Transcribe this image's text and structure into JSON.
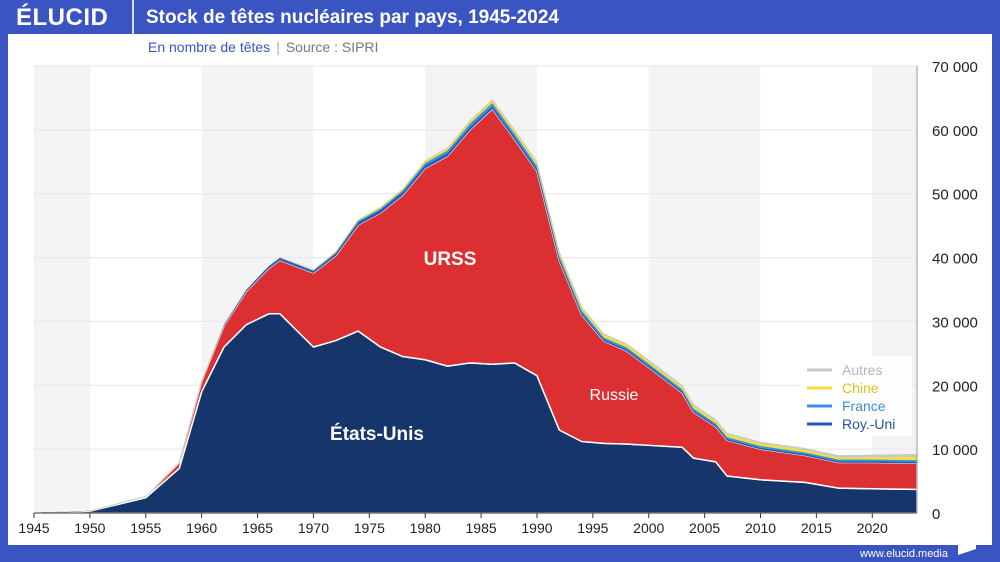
{
  "header": {
    "logo": "ÉLUCID",
    "title": "Stock de têtes nucléaires par pays, 1945-2024"
  },
  "subheader": {
    "unit": "En nombre de têtes",
    "separator": "|",
    "source": "Source : SIPRI"
  },
  "footer": {
    "url": "www.elucid.media"
  },
  "chart_data": {
    "type": "area",
    "stacked": true,
    "title": "Stock de têtes nucléaires par pays, 1945-2024",
    "xlim": [
      1945,
      2024
    ],
    "ylim": [
      0,
      70000
    ],
    "x_ticks": [
      "1945",
      "1950",
      "1955",
      "1960",
      "1965",
      "1970",
      "1975",
      "1980",
      "1985",
      "1990",
      "1995",
      "2000",
      "2005",
      "2010",
      "2015",
      "2020"
    ],
    "y_ticks": [
      "0",
      "10 000",
      "20 000",
      "30 000",
      "40 000",
      "50 000",
      "60 000",
      "70 000"
    ],
    "y_axis_position": "right",
    "grid": true,
    "legend_position": "right",
    "x": [
      1945,
      1950,
      1955,
      1958,
      1960,
      1962,
      1964,
      1966,
      1967,
      1970,
      1972,
      1974,
      1976,
      1978,
      1980,
      1982,
      1984,
      1986,
      1988,
      1990,
      1992,
      1994,
      1996,
      1998,
      2000,
      2003,
      2004,
      2006,
      2007,
      2010,
      2014,
      2017,
      2020,
      2024
    ],
    "series": [
      {
        "name": "États-Unis",
        "color": "#16366b",
        "values": [
          2,
          300,
          2400,
          7000,
          19000,
          26000,
          29500,
          31200,
          31200,
          26000,
          27000,
          28500,
          26000,
          24500,
          24000,
          23000,
          23500,
          23300,
          23500,
          21500,
          13000,
          11200,
          10900,
          10800,
          10600,
          10300,
          8600,
          8000,
          5800,
          5200,
          4800,
          3900,
          3800,
          3700
        ]
      },
      {
        "name": "URSS / Russie",
        "color": "#dc2f32",
        "values": [
          0,
          5,
          200,
          870,
          1600,
          3300,
          5200,
          7100,
          8400,
          11600,
          13300,
          16600,
          21000,
          25300,
          30000,
          32900,
          36500,
          40000,
          35000,
          32000,
          26500,
          19800,
          16000,
          14600,
          12200,
          8500,
          7200,
          5500,
          5600,
          4800,
          4200,
          4000,
          4100,
          4100
        ]
      },
      {
        "name": "Roy.-Uni",
        "color": "#2457b8",
        "values": [
          0,
          0,
          10,
          50,
          40,
          200,
          300,
          350,
          350,
          300,
          350,
          450,
          450,
          450,
          450,
          450,
          450,
          400,
          400,
          400,
          350,
          300,
          250,
          250,
          250,
          250,
          250,
          250,
          225,
          225,
          225,
          215,
          215,
          225
        ]
      },
      {
        "name": "France",
        "color": "#3a93e0",
        "values": [
          0,
          0,
          0,
          0,
          0,
          0,
          4,
          32,
          50,
          100,
          150,
          200,
          250,
          300,
          400,
          450,
          550,
          550,
          540,
          500,
          450,
          450,
          350,
          350,
          350,
          350,
          350,
          300,
          300,
          300,
          290,
          290,
          290,
          290
        ]
      },
      {
        "name": "Chine",
        "color": "#f3e13a",
        "values": [
          0,
          0,
          0,
          0,
          0,
          0,
          1,
          20,
          25,
          75,
          130,
          170,
          190,
          215,
          280,
          330,
          370,
          410,
          430,
          440,
          430,
          420,
          410,
          400,
          400,
          400,
          400,
          400,
          400,
          400,
          380,
          300,
          350,
          500
        ]
      },
      {
        "name": "Autres",
        "color": "#c8c8c8",
        "values": [
          0,
          0,
          0,
          0,
          0,
          0,
          0,
          0,
          0,
          0,
          0,
          0,
          0,
          0,
          50,
          80,
          100,
          120,
          150,
          150,
          150,
          150,
          150,
          150,
          180,
          200,
          200,
          200,
          200,
          200,
          250,
          300,
          350,
          400
        ]
      }
    ],
    "annotations": [
      "URSS",
      "Russie",
      "États-Unis"
    ],
    "legend": [
      "Autres",
      "Chine",
      "France",
      "Roy.-Uni"
    ]
  }
}
